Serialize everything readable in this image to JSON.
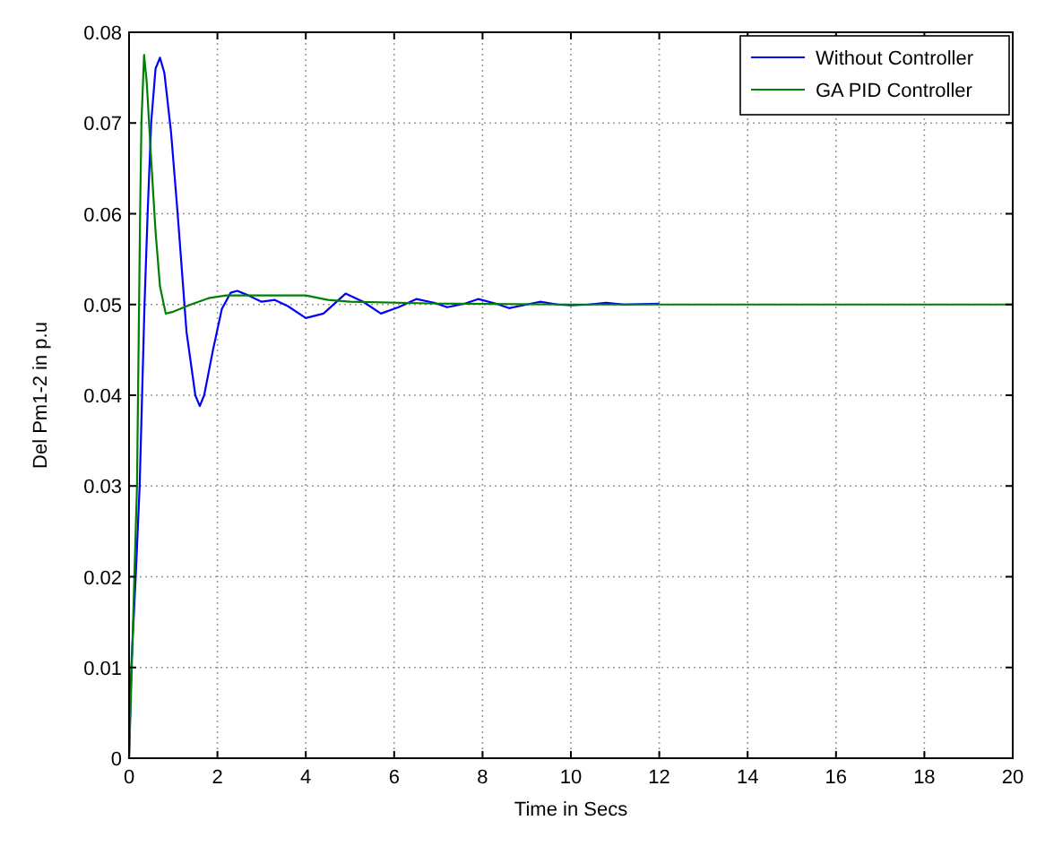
{
  "chart_data": {
    "type": "line",
    "xlabel": "Time in Secs",
    "ylabel": "Del Pm1-2 in p.u",
    "xlim": [
      0,
      20
    ],
    "ylim": [
      0,
      0.08
    ],
    "xticks": [
      0,
      2,
      4,
      6,
      8,
      10,
      12,
      14,
      16,
      18,
      20
    ],
    "yticks": [
      0,
      0.01,
      0.02,
      0.03,
      0.04,
      0.05,
      0.06,
      0.07,
      0.08
    ],
    "grid": true,
    "legend": "top right",
    "series": [
      {
        "name": "Without Controller",
        "color": "#0000ff",
        "x": [
          0,
          0.05,
          0.15,
          0.24,
          0.35,
          0.42,
          0.5,
          0.6,
          0.7,
          0.8,
          0.95,
          1.1,
          1.3,
          1.5,
          1.6,
          1.7,
          1.9,
          2.1,
          2.3,
          2.45,
          2.7,
          3.0,
          3.3,
          3.6,
          4.0,
          4.4,
          4.9,
          5.3,
          5.7,
          6.1,
          6.5,
          6.9,
          7.2,
          7.6,
          7.9,
          8.3,
          8.6,
          9.0,
          9.3,
          9.7,
          10.0,
          10.4,
          10.8,
          11.2,
          12.0
        ],
        "values": [
          0,
          0.01,
          0.02,
          0.03,
          0.05,
          0.06,
          0.07,
          0.076,
          0.0772,
          0.0755,
          0.069,
          0.06,
          0.047,
          0.04,
          0.0388,
          0.04,
          0.045,
          0.0495,
          0.0513,
          0.0515,
          0.051,
          0.0503,
          0.0505,
          0.0498,
          0.0485,
          0.049,
          0.0512,
          0.0503,
          0.049,
          0.0497,
          0.0506,
          0.0502,
          0.0497,
          0.0501,
          0.0506,
          0.0501,
          0.0496,
          0.05,
          0.0503,
          0.05,
          0.0499,
          0.05,
          0.0502,
          0.05,
          0.0501
        ]
      },
      {
        "name": "GA PID Controller",
        "color": "#008000",
        "x": [
          0,
          0.05,
          0.12,
          0.18,
          0.25,
          0.28,
          0.34,
          0.4,
          0.5,
          0.6,
          0.7,
          0.83,
          1.0,
          1.4,
          1.8,
          2.2,
          3.0,
          4.0,
          4.5,
          5.0,
          7.0,
          10.0,
          20
        ],
        "values": [
          0,
          0.008,
          0.02,
          0.03,
          0.06,
          0.07,
          0.0775,
          0.0745,
          0.066,
          0.058,
          0.052,
          0.049,
          0.0492,
          0.05,
          0.0507,
          0.051,
          0.051,
          0.051,
          0.0505,
          0.0503,
          0.0501,
          0.05,
          0.05
        ]
      }
    ]
  }
}
